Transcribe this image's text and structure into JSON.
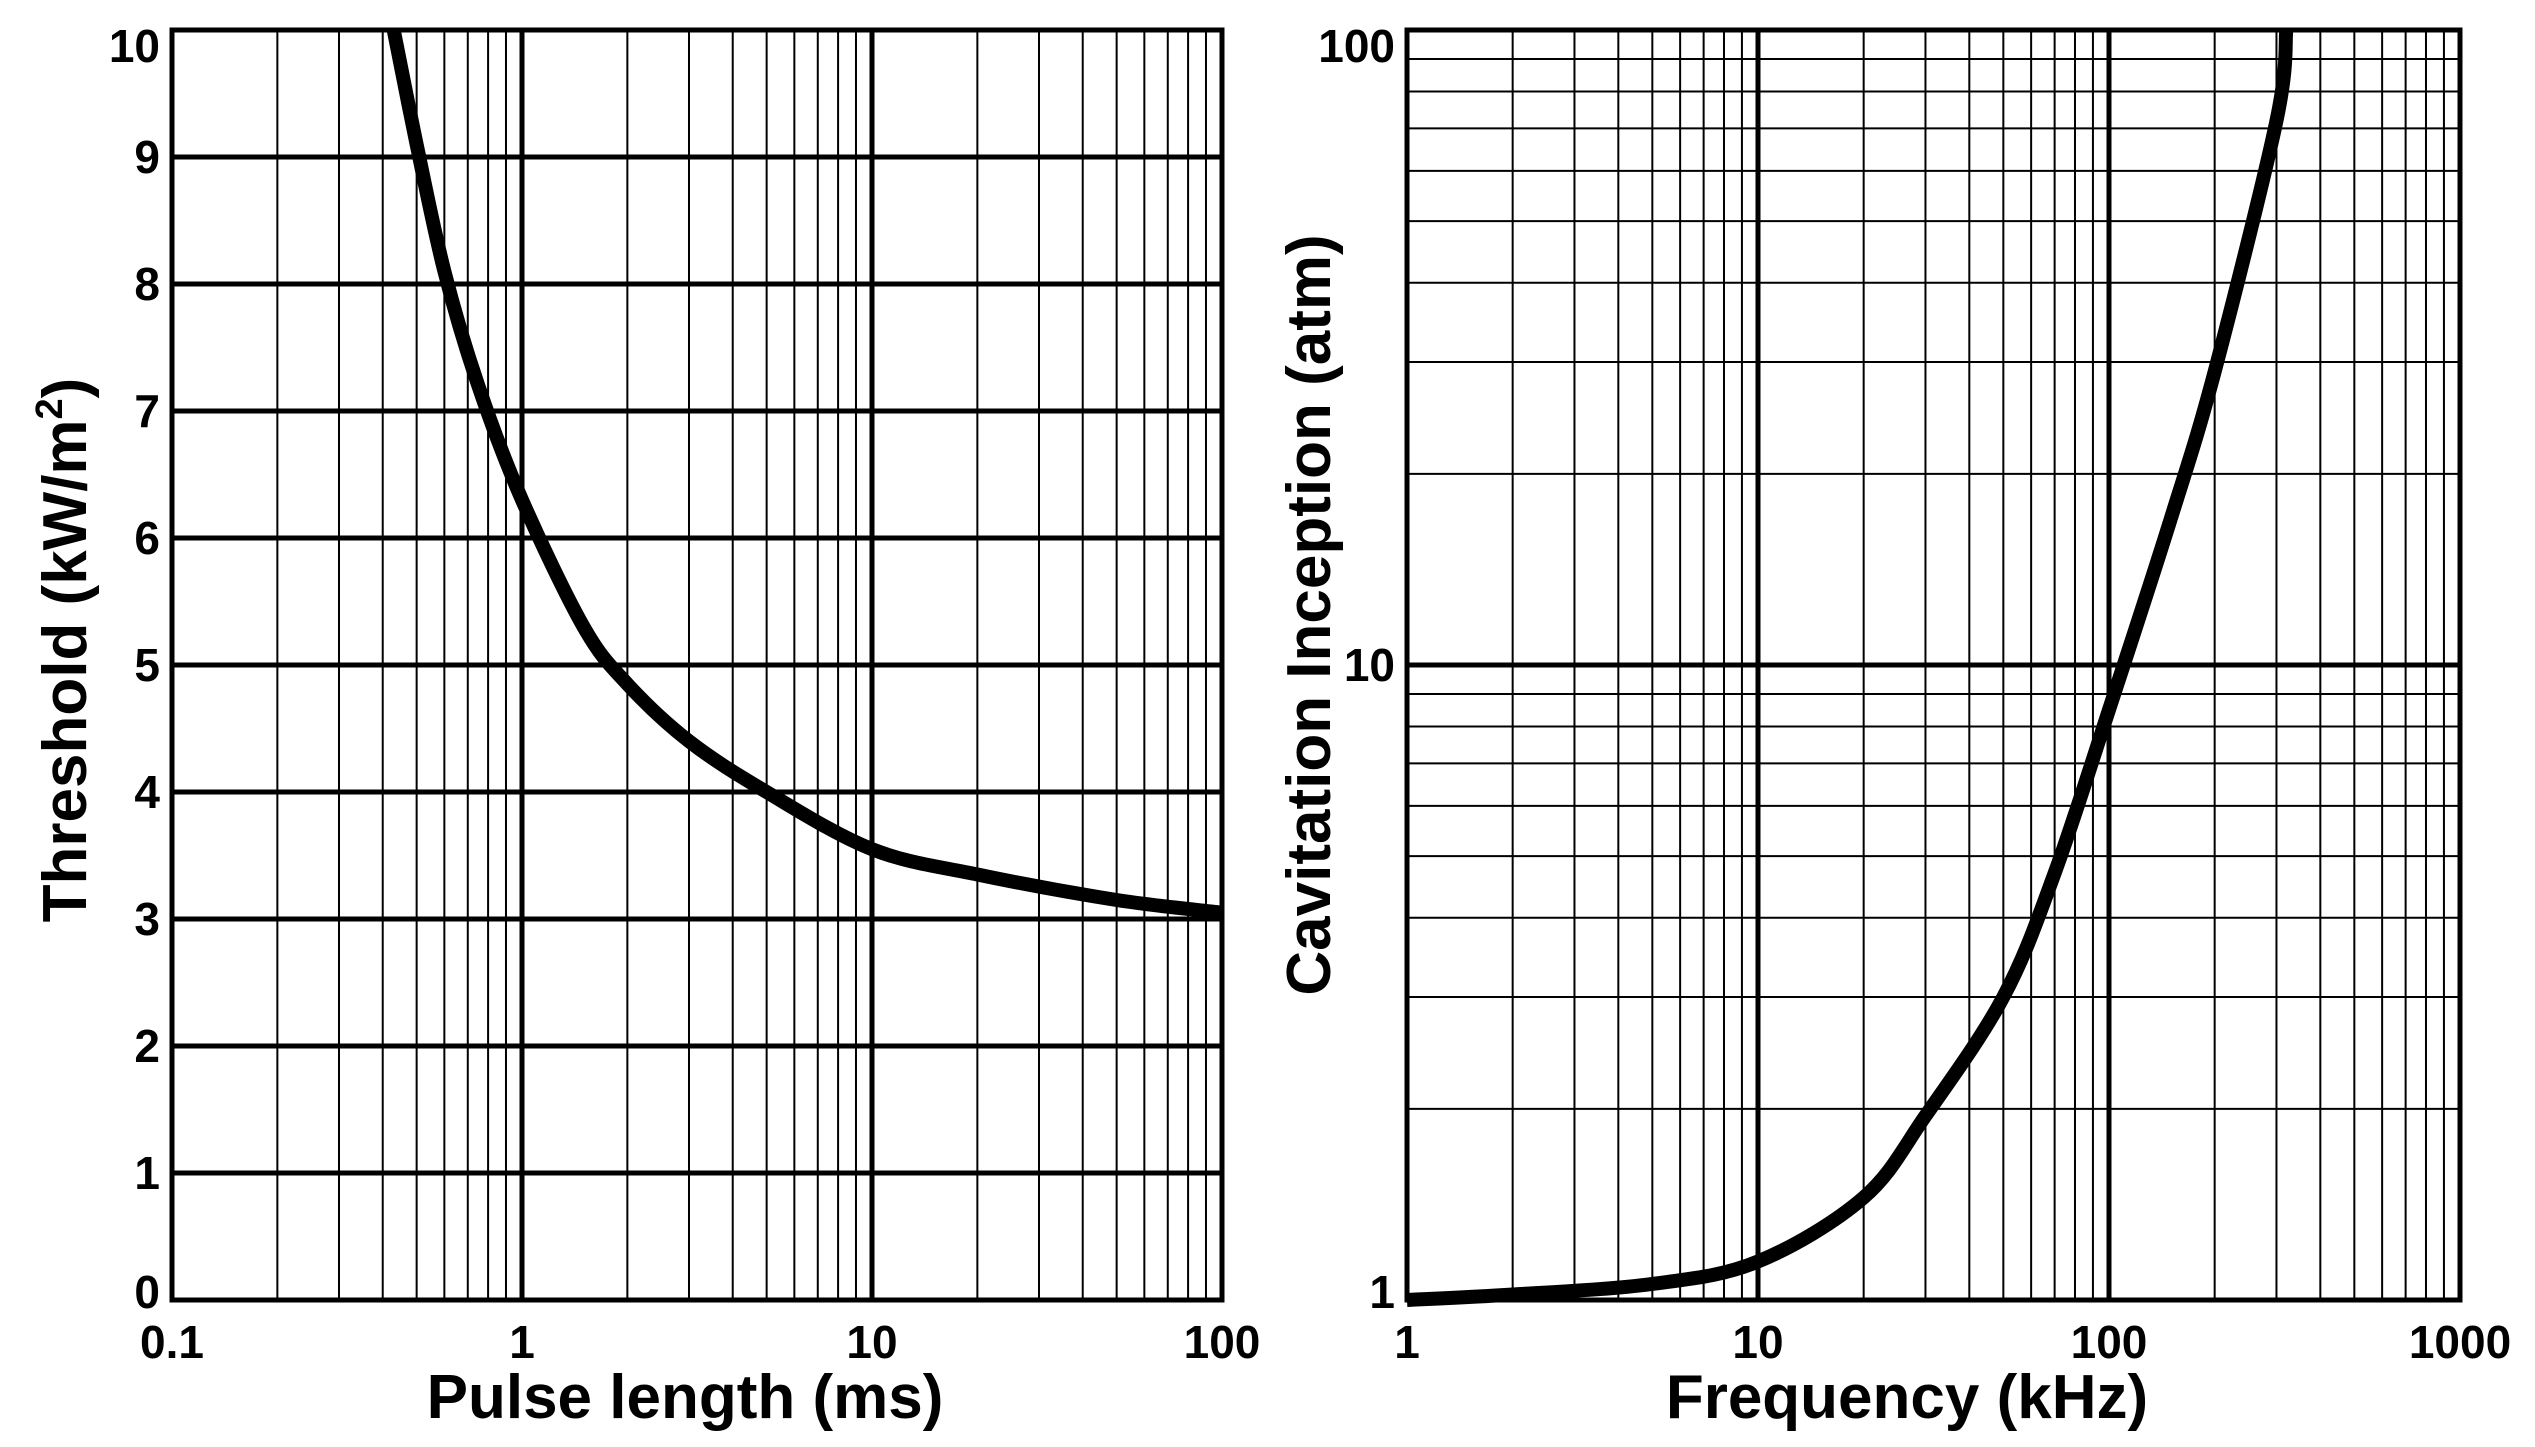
{
  "chart_data": [
    {
      "type": "line",
      "title": "",
      "xlabel": "Pulse length (ms)",
      "ylabel": "Threshold (kW/m²)",
      "ylabel_parts": {
        "main": "Threshold (kW/m",
        "sup": "2",
        "end": ")"
      },
      "xscale": "log",
      "yscale": "linear",
      "xlim": [
        0.1,
        100
      ],
      "ylim": [
        0,
        10
      ],
      "grid": true,
      "x_tick_labels": [
        "0.1",
        "1",
        "10",
        "100"
      ],
      "y_tick_labels": [
        "0",
        "1",
        "2",
        "3",
        "4",
        "5",
        "6",
        "7",
        "8",
        "9",
        "10"
      ],
      "series": [
        {
          "name": "Threshold",
          "color": "#000000",
          "x": [
            0.43,
            0.5,
            0.6,
            0.75,
            1.0,
            1.5,
            2.0,
            3.0,
            5.0,
            10.0,
            20.0,
            50.0,
            100.0
          ],
          "y": [
            10.0,
            9.1,
            8.1,
            7.2,
            6.3,
            5.3,
            4.85,
            4.4,
            4.0,
            3.55,
            3.35,
            3.15,
            3.05
          ]
        }
      ]
    },
    {
      "type": "line",
      "title": "",
      "xlabel": "Frequency (kHz)",
      "ylabel": "Cavitation Inception (atm)",
      "xscale": "log",
      "yscale": "log",
      "xlim": [
        1,
        1000
      ],
      "ylim": [
        1,
        100
      ],
      "grid": true,
      "x_tick_labels": [
        "1",
        "10",
        "100",
        "1000"
      ],
      "y_tick_labels": [
        "1",
        "10",
        "100"
      ],
      "series": [
        {
          "name": "Cavitation inception",
          "color": "#000000",
          "x": [
            1,
            2,
            5,
            10,
            20,
            30,
            50,
            70,
            100,
            150,
            200,
            300,
            320
          ],
          "y": [
            1.0,
            1.02,
            1.06,
            1.15,
            1.45,
            1.95,
            3.0,
            4.7,
            8.5,
            17,
            29,
            72,
            100
          ]
        }
      ]
    }
  ]
}
